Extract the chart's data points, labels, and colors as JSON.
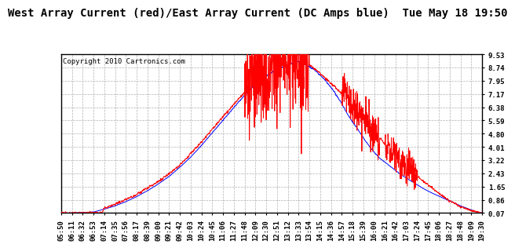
{
  "title": "West Array Current (red)/East Array Current (DC Amps blue)  Tue May 18 19:50",
  "copyright": "Copyright 2010 Cartronics.com",
  "yticks": [
    0.07,
    0.86,
    1.65,
    2.43,
    3.22,
    4.01,
    4.8,
    5.59,
    6.38,
    7.17,
    7.95,
    8.74,
    9.53
  ],
  "ylim": [
    0.07,
    9.53
  ],
  "xtick_labels": [
    "05:50",
    "06:11",
    "06:32",
    "06:53",
    "07:14",
    "07:35",
    "07:56",
    "08:17",
    "08:39",
    "09:00",
    "09:21",
    "09:42",
    "10:03",
    "10:24",
    "10:45",
    "11:06",
    "11:27",
    "11:48",
    "12:09",
    "12:30",
    "12:51",
    "13:12",
    "13:33",
    "13:54",
    "14:15",
    "14:36",
    "14:57",
    "15:18",
    "15:39",
    "16:00",
    "16:21",
    "16:42",
    "17:03",
    "17:24",
    "17:45",
    "18:06",
    "18:27",
    "18:48",
    "19:09",
    "19:30"
  ],
  "background_color": "#ffffff",
  "plot_background": "#ffffff",
  "grid_color": "#b0b0b0",
  "red_color": "#ff0000",
  "blue_color": "#0000ff",
  "title_fontsize": 10,
  "tick_fontsize": 6.5,
  "copyright_fontsize": 6.5,
  "yaxis_side": "right"
}
